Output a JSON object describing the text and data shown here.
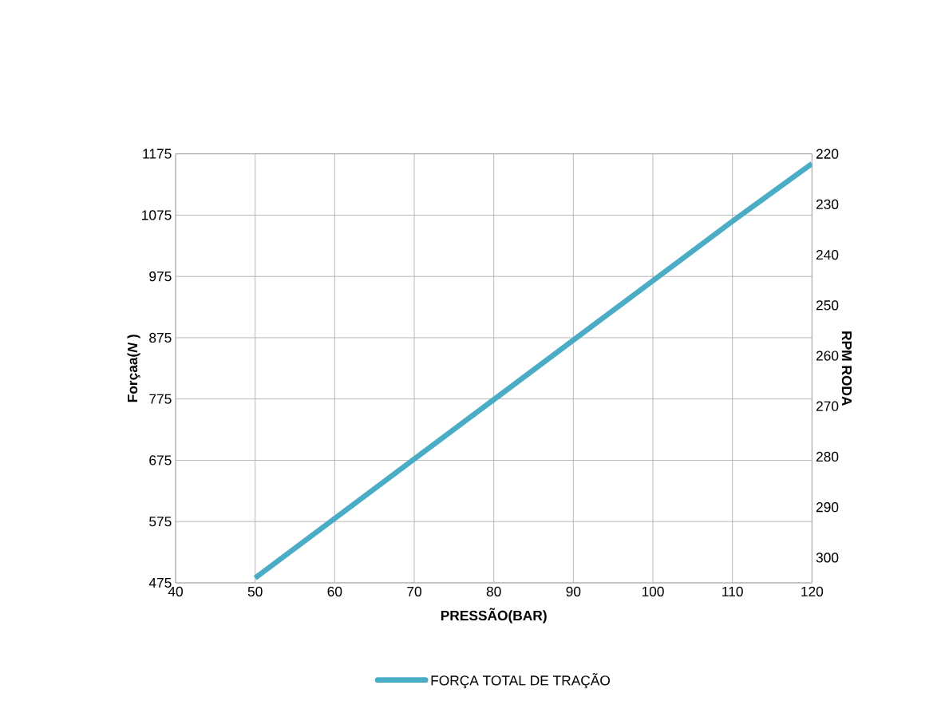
{
  "chart_data": {
    "type": "line",
    "xlabel": "PRESSÃO(BAR)",
    "ylabel": "Forçaa(*N* )",
    "y2label": "RPM RODA",
    "x": [
      50,
      60,
      70,
      80,
      90,
      100,
      110,
      120
    ],
    "series": [
      {
        "name": "FORÇA TOTAL DE TRAÇÃO",
        "color": "#4bacc6",
        "values": [
          483,
          580,
          677,
          774,
          871,
          968,
          1065,
          1159
        ]
      }
    ],
    "xlim": [
      40,
      120
    ],
    "xticks": [
      40,
      50,
      60,
      70,
      80,
      90,
      100,
      110,
      120
    ],
    "ylim": [
      475,
      1175
    ],
    "yticks": [
      475,
      575,
      675,
      775,
      875,
      975,
      1075,
      1175
    ],
    "y2lim": [
      305,
      220
    ],
    "y2ticks": [
      220,
      230,
      240,
      250,
      260,
      270,
      280,
      290,
      300
    ],
    "grid": true,
    "legend": "bottom",
    "marker": "none",
    "line_style": "solid"
  }
}
